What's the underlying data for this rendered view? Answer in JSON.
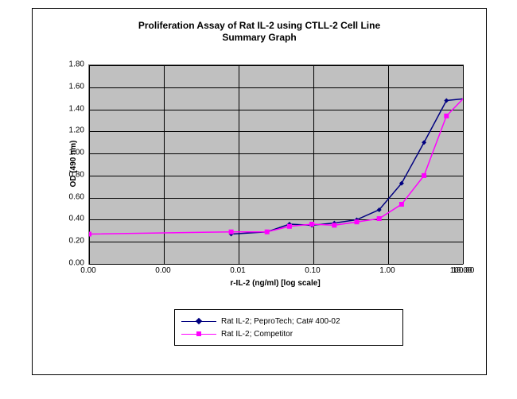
{
  "chart": {
    "type": "line-log-x",
    "title_line1": "Proliferation Assay of Rat IL-2 using CTLL-2 Cell Line",
    "title_line2": "Summary Graph",
    "title_fontsize": 12,
    "xlabel": "r-IL-2 (ng/ml) [log scale]",
    "ylabel": "OD (490 nm)",
    "label_fontsize": 10,
    "plot_bg": "#c0c0c0",
    "frame_border": "#000000",
    "grid_color": "#000000",
    "ylim": [
      0.0,
      1.8
    ],
    "ytick_step": 0.2,
    "yticks": [
      "0.00",
      "0.20",
      "0.40",
      "0.60",
      "0.80",
      "1.00",
      "1.20",
      "1.40",
      "1.60",
      "1.80"
    ],
    "x_log_exp_min": -3,
    "x_log_exp_max": 2,
    "xticks": [
      {
        "exp": -3,
        "label": "0.00"
      },
      {
        "exp": -2,
        "label": "0.00"
      },
      {
        "exp": -1,
        "label": "0.01"
      },
      {
        "exp": 0,
        "label": "0.10"
      },
      {
        "exp": 1,
        "label": "1.00"
      },
      {
        "exp": 2,
        "label": "10.00"
      }
    ],
    "xticks_extra_label": "100.00",
    "series": [
      {
        "name": "Rat IL-2; PeproTech; Cat# 400-02",
        "color": "#000080",
        "marker": "diamond",
        "marker_size": 6,
        "line_width": 1.5,
        "points": [
          {
            "exp": -1.1,
            "y": 0.27
          },
          {
            "exp": -0.62,
            "y": 0.29
          },
          {
            "exp": -0.32,
            "y": 0.36
          },
          {
            "exp": -0.02,
            "y": 0.35
          },
          {
            "exp": 0.28,
            "y": 0.37
          },
          {
            "exp": 0.58,
            "y": 0.4
          },
          {
            "exp": 0.88,
            "y": 0.49
          },
          {
            "exp": 1.18,
            "y": 0.73
          },
          {
            "exp": 1.48,
            "y": 1.1
          },
          {
            "exp": 1.78,
            "y": 1.48
          },
          {
            "exp": 2.08,
            "y": 1.5
          },
          {
            "exp": 2.38,
            "y": 1.5
          },
          {
            "exp": 2.68,
            "y": 1.59
          }
        ]
      },
      {
        "name": "Rat IL-2; Competitor",
        "color": "#ff00ff",
        "marker": "square",
        "marker_size": 6,
        "line_width": 1.5,
        "points": [
          {
            "exp": -3.0,
            "y": 0.27
          },
          {
            "exp": -1.1,
            "y": 0.29
          },
          {
            "exp": -0.62,
            "y": 0.29
          },
          {
            "exp": -0.32,
            "y": 0.34
          },
          {
            "exp": -0.02,
            "y": 0.36
          },
          {
            "exp": 0.28,
            "y": 0.35
          },
          {
            "exp": 0.58,
            "y": 0.38
          },
          {
            "exp": 0.88,
            "y": 0.41
          },
          {
            "exp": 1.18,
            "y": 0.54
          },
          {
            "exp": 1.48,
            "y": 0.8
          },
          {
            "exp": 1.78,
            "y": 1.34
          },
          {
            "exp": 2.08,
            "y": 1.55
          },
          {
            "exp": 2.38,
            "y": 1.62
          },
          {
            "exp": 2.68,
            "y": 1.58
          }
        ]
      }
    ],
    "legend": {
      "border": "#000000",
      "items": [
        {
          "label": "Rat IL-2; PeproTech; Cat# 400-02",
          "color": "#000080",
          "marker": "diamond"
        },
        {
          "label": "Rat IL-2; Competitor",
          "color": "#ff00ff",
          "marker": "square"
        }
      ]
    }
  }
}
